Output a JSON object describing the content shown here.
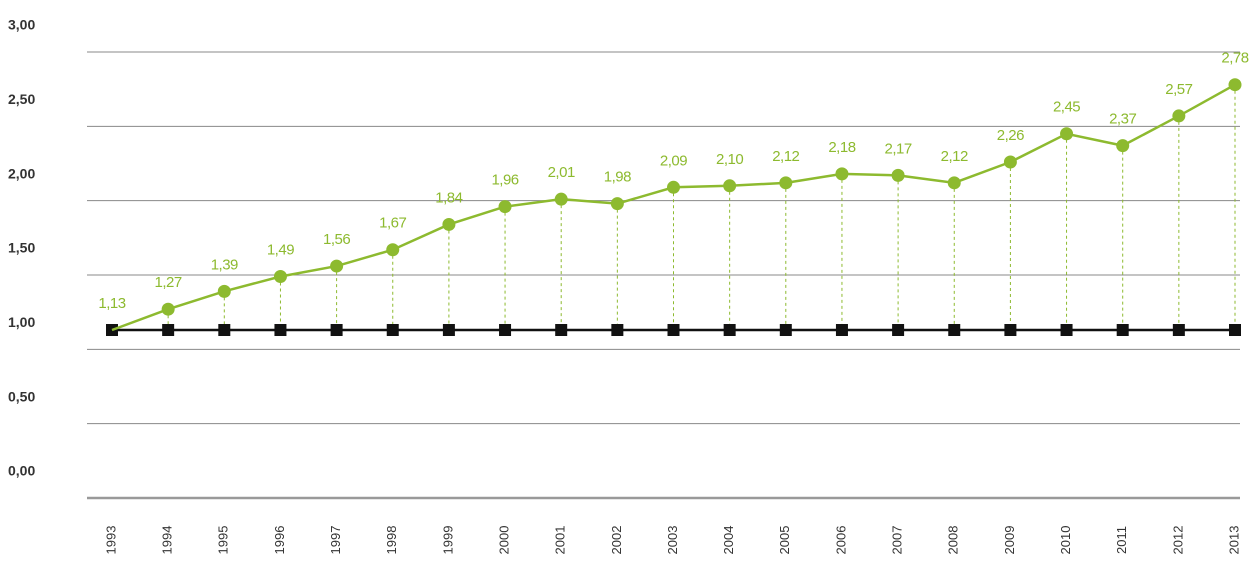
{
  "chart_data": {
    "type": "line",
    "categories": [
      "1993",
      "1994",
      "1995",
      "1996",
      "1997",
      "1998",
      "1999",
      "2000",
      "2001",
      "2002",
      "2003",
      "2004",
      "2005",
      "2006",
      "2007",
      "2008",
      "2009",
      "2010",
      "2011",
      "2012",
      "2013"
    ],
    "series": [
      {
        "color": "#8dba2f",
        "marker": "circle",
        "values": [
          1.13,
          1.27,
          1.39,
          1.49,
          1.56,
          1.67,
          1.84,
          1.96,
          2.01,
          1.98,
          2.09,
          2.1,
          2.12,
          2.18,
          2.17,
          2.12,
          2.26,
          2.45,
          2.37,
          2.57,
          2.78
        ],
        "value_labels": [
          "1,13",
          "1,27",
          "1,39",
          "1,49",
          "1,56",
          "1,67",
          "1,84",
          "1,96",
          "2,01",
          "1,98",
          "2,09",
          "2,10",
          "2,12",
          "2,18",
          "2,17",
          "2,12",
          "2,26",
          "2,45",
          "2,37",
          "2,57",
          "2,78"
        ]
      },
      {
        "color": "#111111",
        "marker": "square",
        "values": [
          1.13,
          1.13,
          1.13,
          1.13,
          1.13,
          1.13,
          1.13,
          1.13,
          1.13,
          1.13,
          1.13,
          1.13,
          1.13,
          1.13,
          1.13,
          1.13,
          1.13,
          1.13,
          1.13,
          1.13,
          1.13
        ]
      }
    ],
    "ylim": [
      0,
      3
    ],
    "yticks": [
      {
        "value": 0,
        "label": "0,00"
      },
      {
        "value": 0.5,
        "label": "0,50"
      },
      {
        "value": 1,
        "label": "1,00"
      },
      {
        "value": 1.5,
        "label": "1,50"
      },
      {
        "value": 2,
        "label": "2,00"
      },
      {
        "value": 2.5,
        "label": "2,50"
      },
      {
        "value": 3,
        "label": "3,00"
      }
    ],
    "grid": true
  }
}
